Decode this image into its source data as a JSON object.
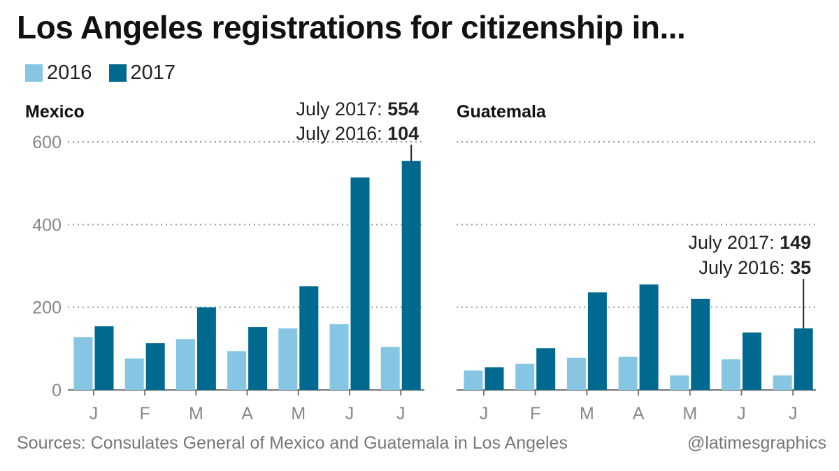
{
  "title": "Los Angeles registrations for citizenship in...",
  "legend": [
    {
      "label": "2016",
      "color": "#86c6e2"
    },
    {
      "label": "2017",
      "color": "#00698f"
    }
  ],
  "footer": {
    "source": "Sources: Consulates General of Mexico and Guatemala in Los Angeles",
    "credit": "@latimesgraphics"
  },
  "chart_data": [
    {
      "type": "bar",
      "title": "Mexico",
      "categories": [
        "J",
        "F",
        "M",
        "A",
        "M",
        "J",
        "J"
      ],
      "series": [
        {
          "name": "2016",
          "values": [
            128,
            76,
            123,
            94,
            149,
            159,
            104
          ]
        },
        {
          "name": "2017",
          "values": [
            154,
            113,
            200,
            152,
            251,
            514,
            554
          ]
        }
      ],
      "ylim": [
        0,
        600
      ],
      "yticks": [
        "0",
        "200",
        "400",
        "600"
      ],
      "grid": true,
      "annotation": {
        "line1_label": "July 2017: ",
        "line1_value": "554",
        "line2_label": "July 2016: ",
        "line2_value": "104"
      }
    },
    {
      "type": "bar",
      "title": "Guatemala",
      "categories": [
        "J",
        "F",
        "M",
        "A",
        "M",
        "J",
        "J"
      ],
      "series": [
        {
          "name": "2016",
          "values": [
            47,
            63,
            78,
            80,
            35,
            74,
            35
          ]
        },
        {
          "name": "2017",
          "values": [
            55,
            101,
            236,
            255,
            220,
            139,
            149
          ]
        }
      ],
      "ylim": [
        0,
        600
      ],
      "grid": true,
      "annotation": {
        "line1_label": "July 2017: ",
        "line1_value": "149",
        "line2_label": "July 2016: ",
        "line2_value": "35"
      }
    }
  ]
}
